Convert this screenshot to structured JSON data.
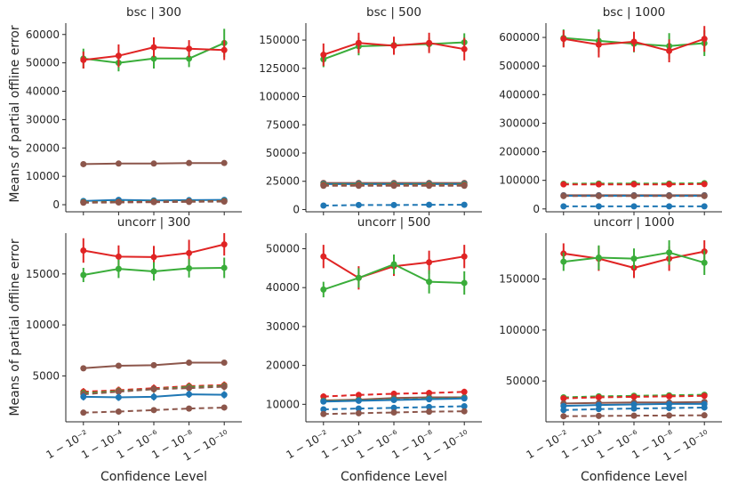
{
  "figure": {
    "ylabel": "Means of partial offline error",
    "xlabel": "Confidence Level",
    "xticks": [
      "1 − 10⁻²",
      "1 − 10⁻⁴",
      "1 − 10⁻⁶",
      "1 − 10⁻⁸",
      "1 − 10⁻¹⁰"
    ]
  },
  "colors": {
    "blue": "#1f77b4",
    "brown": "#8c564b",
    "green": "#3aad3a",
    "red": "#e02424",
    "axis": "#262626"
  },
  "chart_data": [
    {
      "type": "line",
      "title": "bsc | 300",
      "ylim": [
        -2500,
        64000
      ],
      "yticks": [
        0,
        10000,
        20000,
        30000,
        40000,
        50000,
        60000
      ],
      "yticklabels": [
        "0",
        "10000",
        "20000",
        "30000",
        "40000",
        "50000",
        "60000"
      ],
      "series": [
        {
          "color": "green",
          "dash": false,
          "values": [
            51500,
            50000,
            51500,
            51500,
            57000
          ],
          "err": [
            3500,
            3000,
            3500,
            3000,
            5000
          ]
        },
        {
          "color": "red",
          "dash": false,
          "values": [
            51000,
            52500,
            55500,
            55000,
            54500
          ],
          "err": [
            3000,
            4000,
            3500,
            3000,
            3500
          ]
        },
        {
          "color": "brown",
          "dash": false,
          "values": [
            14300,
            14500,
            14500,
            14700,
            14700
          ],
          "err": [
            300,
            300,
            300,
            300,
            300
          ]
        },
        {
          "color": "blue",
          "dash": false,
          "values": [
            1300,
            1700,
            1500,
            1600,
            1700
          ],
          "err": [
            300,
            300,
            300,
            300,
            300
          ]
        },
        {
          "color": "blue",
          "dash": true,
          "values": [
            1000,
            1200,
            1200,
            1300,
            1400
          ],
          "err": [
            200,
            200,
            200,
            200,
            200
          ]
        },
        {
          "color": "green",
          "dash": true,
          "values": [
            900,
            1000,
            1100,
            1200,
            1300
          ],
          "err": [
            200,
            200,
            200,
            200,
            200
          ]
        },
        {
          "color": "red",
          "dash": true,
          "values": [
            800,
            900,
            1000,
            1100,
            1200
          ],
          "err": [
            200,
            200,
            200,
            200,
            200
          ]
        },
        {
          "color": "brown",
          "dash": true,
          "values": [
            700,
            800,
            900,
            1000,
            1100
          ],
          "err": [
            200,
            200,
            200,
            200,
            200
          ]
        }
      ]
    },
    {
      "type": "line",
      "title": "bsc | 500",
      "ylim": [
        -2000,
        165000
      ],
      "yticks": [
        0,
        25000,
        50000,
        75000,
        100000,
        125000,
        150000
      ],
      "yticklabels": [
        "0",
        "25000",
        "50000",
        "75000",
        "100000",
        "125000",
        "150000"
      ],
      "series": [
        {
          "color": "green",
          "dash": false,
          "values": [
            133000,
            144500,
            145500,
            146500,
            148000
          ],
          "err": [
            7000,
            8000,
            6000,
            6000,
            8000
          ]
        },
        {
          "color": "red",
          "dash": false,
          "values": [
            137000,
            147500,
            145000,
            147500,
            142000
          ],
          "err": [
            10000,
            9000,
            8000,
            9000,
            10000
          ]
        },
        {
          "color": "brown",
          "dash": false,
          "values": [
            23500,
            23500,
            23500,
            23500,
            23500
          ],
          "err": [
            1000,
            1000,
            1000,
            1000,
            1000
          ]
        },
        {
          "color": "blue",
          "dash": false,
          "values": [
            22500,
            22500,
            22500,
            22500,
            22500
          ],
          "err": [
            800,
            800,
            800,
            800,
            800
          ]
        },
        {
          "color": "green",
          "dash": true,
          "values": [
            22000,
            22000,
            22000,
            22000,
            22000
          ],
          "err": [
            800,
            800,
            800,
            800,
            800
          ]
        },
        {
          "color": "red",
          "dash": true,
          "values": [
            21500,
            21500,
            21500,
            21500,
            21500
          ],
          "err": [
            800,
            800,
            800,
            800,
            800
          ]
        },
        {
          "color": "brown",
          "dash": true,
          "values": [
            21000,
            21000,
            21000,
            21000,
            21000
          ],
          "err": [
            800,
            800,
            800,
            800,
            800
          ]
        },
        {
          "color": "blue",
          "dash": true,
          "values": [
            3500,
            4000,
            4000,
            4200,
            4200
          ],
          "err": [
            300,
            300,
            300,
            300,
            300
          ]
        }
      ]
    },
    {
      "type": "line",
      "title": "bsc | 1000",
      "ylim": [
        -10000,
        650000
      ],
      "yticks": [
        0,
        100000,
        200000,
        300000,
        400000,
        500000,
        600000
      ],
      "yticklabels": [
        "0",
        "100000",
        "200000",
        "300000",
        "400000",
        "500000",
        "600000"
      ],
      "series": [
        {
          "color": "green",
          "dash": false,
          "values": [
            598000,
            588000,
            578000,
            570000,
            580000
          ],
          "err": [
            30000,
            40000,
            30000,
            45000,
            45000
          ]
        },
        {
          "color": "red",
          "dash": false,
          "values": [
            595000,
            575000,
            585000,
            553000,
            595000
          ],
          "err": [
            30000,
            45000,
            35000,
            40000,
            45000
          ]
        },
        {
          "color": "green",
          "dash": true,
          "values": [
            88000,
            89000,
            89000,
            89000,
            90000
          ],
          "err": [
            5000,
            5000,
            5000,
            5000,
            5000
          ]
        },
        {
          "color": "red",
          "dash": true,
          "values": [
            86000,
            86000,
            86000,
            86000,
            87000
          ],
          "err": [
            5000,
            5000,
            5000,
            5000,
            5000
          ]
        },
        {
          "color": "brown",
          "dash": false,
          "values": [
            48000,
            48000,
            48000,
            48000,
            48000
          ],
          "err": [
            3000,
            3000,
            3000,
            3000,
            3000
          ]
        },
        {
          "color": "blue",
          "dash": false,
          "values": [
            46000,
            46000,
            46000,
            46000,
            46000
          ],
          "err": [
            3000,
            3000,
            3000,
            3000,
            3000
          ]
        },
        {
          "color": "brown",
          "dash": true,
          "values": [
            45000,
            45000,
            45000,
            45000,
            45000
          ],
          "err": [
            3000,
            3000,
            3000,
            3000,
            3000
          ]
        },
        {
          "color": "blue",
          "dash": true,
          "values": [
            9000,
            9000,
            9000,
            9000,
            9000
          ],
          "err": [
            1000,
            1000,
            1000,
            1000,
            1000
          ]
        }
      ]
    },
    {
      "type": "line",
      "title": "uncorr | 300",
      "ylim": [
        500,
        19000
      ],
      "yticks": [
        5000,
        10000,
        15000
      ],
      "yticklabels": [
        "5000",
        "10000",
        "15000"
      ],
      "series": [
        {
          "color": "red",
          "dash": false,
          "values": [
            17300,
            16700,
            16650,
            17050,
            17900
          ],
          "err": [
            1200,
            1100,
            1100,
            1300,
            1100
          ]
        },
        {
          "color": "green",
          "dash": false,
          "values": [
            14900,
            15500,
            15250,
            15550,
            15600
          ],
          "err": [
            700,
            900,
            900,
            900,
            1000
          ]
        },
        {
          "color": "brown",
          "dash": false,
          "values": [
            5750,
            6000,
            6050,
            6300,
            6300
          ],
          "err": [
            150,
            150,
            150,
            150,
            150
          ]
        },
        {
          "color": "red",
          "dash": true,
          "values": [
            3450,
            3600,
            3800,
            4000,
            4100
          ],
          "err": [
            350,
            350,
            350,
            350,
            350
          ]
        },
        {
          "color": "green",
          "dash": true,
          "values": [
            3300,
            3500,
            3700,
            3900,
            4000
          ],
          "err": [
            350,
            350,
            350,
            350,
            350
          ]
        },
        {
          "color": "brown",
          "dash": true,
          "values": [
            3200,
            3450,
            3700,
            3800,
            3950
          ],
          "err": [
            350,
            350,
            350,
            350,
            350
          ]
        },
        {
          "color": "blue",
          "dash": false,
          "values": [
            2950,
            2900,
            2950,
            3200,
            3150
          ],
          "err": [
            350,
            350,
            350,
            350,
            350
          ]
        },
        {
          "color": "brown",
          "dash": true,
          "values": [
            1400,
            1500,
            1650,
            1800,
            1900
          ],
          "err": [
            150,
            150,
            150,
            150,
            150
          ]
        }
      ]
    },
    {
      "type": "line",
      "title": "uncorr | 500",
      "ylim": [
        5500,
        54000
      ],
      "yticks": [
        10000,
        20000,
        30000,
        40000,
        50000
      ],
      "yticklabels": [
        "10000",
        "20000",
        "30000",
        "40000",
        "50000"
      ],
      "series": [
        {
          "color": "red",
          "dash": false,
          "values": [
            48000,
            42500,
            45500,
            46500,
            48000
          ],
          "err": [
            3000,
            3000,
            2500,
            3000,
            3000
          ]
        },
        {
          "color": "green",
          "dash": false,
          "values": [
            39500,
            42500,
            46000,
            41500,
            41200
          ],
          "err": [
            2000,
            2500,
            2500,
            3000,
            3000
          ]
        },
        {
          "color": "red",
          "dash": true,
          "values": [
            12000,
            12400,
            12700,
            12900,
            13200
          ],
          "err": [
            800,
            800,
            800,
            800,
            800
          ]
        },
        {
          "color": "brown",
          "dash": false,
          "values": [
            11000,
            11200,
            11600,
            11800,
            11800
          ],
          "err": [
            500,
            500,
            500,
            500,
            500
          ]
        },
        {
          "color": "green",
          "dash": true,
          "values": [
            10800,
            11000,
            11200,
            11400,
            11600
          ],
          "err": [
            500,
            500,
            500,
            500,
            500
          ]
        },
        {
          "color": "blue",
          "dash": false,
          "values": [
            10700,
            10900,
            11100,
            11300,
            11500
          ],
          "err": [
            500,
            500,
            500,
            500,
            500
          ]
        },
        {
          "color": "blue",
          "dash": true,
          "values": [
            8700,
            8900,
            9100,
            9300,
            9500
          ],
          "err": [
            400,
            400,
            400,
            400,
            400
          ]
        },
        {
          "color": "brown",
          "dash": true,
          "values": [
            7500,
            7700,
            7900,
            8100,
            8200
          ],
          "err": [
            400,
            400,
            400,
            400,
            400
          ]
        }
      ]
    },
    {
      "type": "line",
      "title": "uncorr | 1000",
      "ylim": [
        10000,
        195000
      ],
      "yticks": [
        50000,
        100000,
        150000
      ],
      "yticklabels": [
        "50000",
        "100000",
        "150000"
      ],
      "series": [
        {
          "color": "red",
          "dash": false,
          "values": [
            175000,
            170000,
            161000,
            170000,
            177000
          ],
          "err": [
            10000,
            12000,
            10000,
            12000,
            11000
          ]
        },
        {
          "color": "green",
          "dash": false,
          "values": [
            167000,
            171000,
            170000,
            176000,
            166000
          ],
          "err": [
            9000,
            12000,
            10000,
            12000,
            12000
          ]
        },
        {
          "color": "green",
          "dash": true,
          "values": [
            34000,
            35000,
            35500,
            36000,
            36500
          ],
          "err": [
            2000,
            2000,
            2000,
            2000,
            2000
          ]
        },
        {
          "color": "red",
          "dash": true,
          "values": [
            33000,
            34000,
            34500,
            35000,
            35500
          ],
          "err": [
            2000,
            2000,
            2000,
            2000,
            2000
          ]
        },
        {
          "color": "brown",
          "dash": false,
          "values": [
            28000,
            28500,
            29000,
            29000,
            29500
          ],
          "err": [
            1500,
            1500,
            1500,
            1500,
            1500
          ]
        },
        {
          "color": "blue",
          "dash": false,
          "values": [
            25500,
            26500,
            27000,
            27500,
            27500
          ],
          "err": [
            1500,
            1500,
            1500,
            1500,
            1500
          ]
        },
        {
          "color": "blue",
          "dash": true,
          "values": [
            21500,
            22500,
            23000,
            23500,
            24000
          ],
          "err": [
            1200,
            1200,
            1200,
            1200,
            1200
          ]
        },
        {
          "color": "brown",
          "dash": true,
          "values": [
            15500,
            15800,
            16000,
            16200,
            16400
          ],
          "err": [
            800,
            800,
            800,
            800,
            800
          ]
        }
      ]
    }
  ]
}
